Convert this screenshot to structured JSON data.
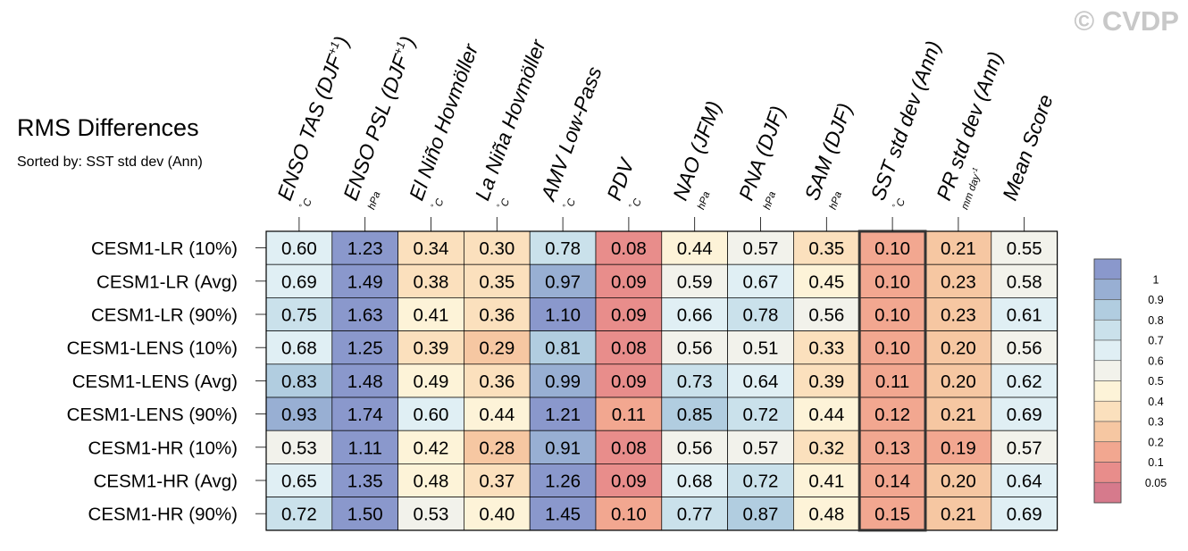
{
  "title": "RMS Differences",
  "subtitle": "Sorted by: SST std dev (Ann)",
  "watermark": "© CVDP",
  "chart_data": {
    "type": "heatmap",
    "columns": [
      {
        "name": "ENSO TAS (DJF+1)",
        "name_main": "ENSO TAS (DJF",
        "name_sup": "+1",
        "name_close": ")",
        "unit": "°C"
      },
      {
        "name": "ENSO PSL (DJF+1)",
        "name_main": "ENSO PSL (DJF",
        "name_sup": "+1",
        "name_close": ")",
        "unit": "hPa"
      },
      {
        "name": "El Niño Hovmöller",
        "name_main": "El Niño Hovmöller",
        "name_sup": "",
        "name_close": "",
        "unit": "°C"
      },
      {
        "name": "La Niña Hovmöller",
        "name_main": "La Niña Hovmöller",
        "name_sup": "",
        "name_close": "",
        "unit": "°C"
      },
      {
        "name": "AMV Low-Pass",
        "name_main": "AMV Low-Pass",
        "name_sup": "",
        "name_close": "",
        "unit": "°C"
      },
      {
        "name": "PDV",
        "name_main": "PDV",
        "name_sup": "",
        "name_close": "",
        "unit": "°C"
      },
      {
        "name": "NAO (JFM)",
        "name_main": "NAO (JFM)",
        "name_sup": "",
        "name_close": "",
        "unit": "hPa"
      },
      {
        "name": "PNA (DJF)",
        "name_main": "PNA (DJF)",
        "name_sup": "",
        "name_close": "",
        "unit": "hPa"
      },
      {
        "name": "SAM (DJF)",
        "name_main": "SAM (DJF)",
        "name_sup": "",
        "name_close": "",
        "unit": "hPa"
      },
      {
        "name": "SST std dev (Ann)",
        "name_main": "SST std dev (Ann)",
        "name_sup": "",
        "name_close": "",
        "unit": "°C"
      },
      {
        "name": "PR std dev (Ann)",
        "name_main": "PR std dev (Ann)",
        "name_sup": "",
        "name_close": "",
        "unit": "mm day-1"
      },
      {
        "name": "Mean Score",
        "name_main": "Mean Score",
        "name_sup": "",
        "name_close": "",
        "unit": ""
      }
    ],
    "rows": [
      {
        "label": "CESM1-LR (10%)",
        "values": [
          0.6,
          1.23,
          0.34,
          0.3,
          0.78,
          0.08,
          0.44,
          0.57,
          0.35,
          0.1,
          0.21,
          0.55
        ]
      },
      {
        "label": "CESM1-LR (Avg)",
        "values": [
          0.69,
          1.49,
          0.38,
          0.35,
          0.97,
          0.09,
          0.59,
          0.67,
          0.45,
          0.1,
          0.23,
          0.58
        ]
      },
      {
        "label": "CESM1-LR (90%)",
        "values": [
          0.75,
          1.63,
          0.41,
          0.36,
          1.1,
          0.09,
          0.66,
          0.78,
          0.56,
          0.1,
          0.23,
          0.61
        ]
      },
      {
        "label": "CESM1-LENS (10%)",
        "values": [
          0.68,
          1.25,
          0.39,
          0.29,
          0.81,
          0.08,
          0.56,
          0.51,
          0.33,
          0.1,
          0.2,
          0.56
        ]
      },
      {
        "label": "CESM1-LENS (Avg)",
        "values": [
          0.83,
          1.48,
          0.49,
          0.36,
          0.99,
          0.09,
          0.73,
          0.64,
          0.39,
          0.11,
          0.2,
          0.62
        ]
      },
      {
        "label": "CESM1-LENS (90%)",
        "values": [
          0.93,
          1.74,
          0.6,
          0.44,
          1.21,
          0.11,
          0.85,
          0.72,
          0.44,
          0.12,
          0.21,
          0.69
        ]
      },
      {
        "label": "CESM1-HR (10%)",
        "values": [
          0.53,
          1.11,
          0.42,
          0.28,
          0.91,
          0.08,
          0.56,
          0.57,
          0.32,
          0.13,
          0.19,
          0.57
        ]
      },
      {
        "label": "CESM1-HR (Avg)",
        "values": [
          0.65,
          1.35,
          0.48,
          0.37,
          1.26,
          0.09,
          0.68,
          0.72,
          0.41,
          0.14,
          0.2,
          0.64
        ]
      },
      {
        "label": "CESM1-HR (90%)",
        "values": [
          0.72,
          1.5,
          0.53,
          0.4,
          1.45,
          0.1,
          0.77,
          0.87,
          0.48,
          0.15,
          0.21,
          0.69
        ]
      }
    ],
    "highlighted_column": "SST std dev (Ann)",
    "colorbar": {
      "tick_labels": [
        "1",
        "0.9",
        "0.8",
        "0.7",
        "0.6",
        "0.5",
        "0.4",
        "0.3",
        "0.2",
        "0.1",
        "0.05"
      ],
      "levels": [
        0.05,
        0.1,
        0.2,
        0.3,
        0.4,
        0.5,
        0.6,
        0.7,
        0.8,
        0.9,
        1.0
      ],
      "colors": [
        "#d67a8c",
        "#e88d8b",
        "#f2a790",
        "#f6c7a2",
        "#fbe0bd",
        "#fdf3d8",
        "#f2f2eb",
        "#e0eff4",
        "#cae1eb",
        "#b1cde0",
        "#98afd3",
        "#8a98cc"
      ]
    }
  }
}
